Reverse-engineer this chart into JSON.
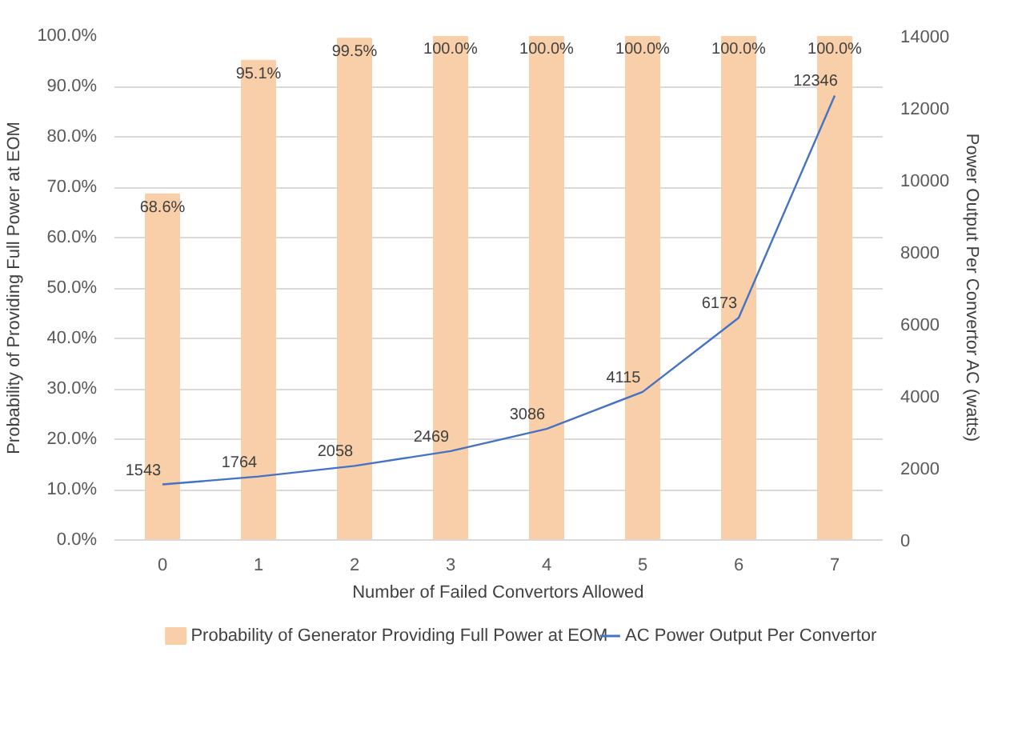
{
  "chart_data": {
    "type": "bar",
    "categories": [
      "0",
      "1",
      "2",
      "3",
      "4",
      "5",
      "6",
      "7"
    ],
    "xlabel": "Number of Failed Convertors Allowed",
    "ylabel": "Probability of Providing Full Power at EOM",
    "y2label": "Power Output Per Convertor AC (watts)",
    "series": [
      {
        "name": "Probability of Generator Providing Full Power at EOM",
        "color": "#f8cfa8",
        "values": [
          68.6,
          95.1,
          99.5,
          100,
          100,
          100,
          100,
          100
        ],
        "value_labels": [
          "68.6%",
          "95.1%",
          "99.5%",
          "100.0%",
          "100.0%",
          "100.0%",
          "100.0%",
          "100.0%"
        ]
      },
      {
        "name": "AC Power Output Per Convertor",
        "type": "line",
        "axis": "y2",
        "color": "#4472c4",
        "values": [
          1543,
          1764,
          2058,
          2469,
          3086,
          4115,
          6173,
          12346
        ],
        "value_labels": [
          "1543",
          "1764",
          "2058",
          "2469",
          "3086",
          "4115",
          "6173",
          "12346"
        ]
      }
    ],
    "ylim": [
      0,
      100
    ],
    "yticks": [
      {
        "value": 0,
        "label": "0.0%"
      },
      {
        "value": 10,
        "label": "10.0%"
      },
      {
        "value": 20,
        "label": "20.0%"
      },
      {
        "value": 30,
        "label": "30.0%"
      },
      {
        "value": 40,
        "label": "40.0%"
      },
      {
        "value": 50,
        "label": "50.0%"
      },
      {
        "value": 60,
        "label": "60.0%"
      },
      {
        "value": 70,
        "label": "70.0%"
      },
      {
        "value": 80,
        "label": "80.0%"
      },
      {
        "value": 90,
        "label": "90.0%"
      },
      {
        "value": 100,
        "label": "100.0%"
      }
    ],
    "y2lim": [
      0,
      14000
    ],
    "y2ticks": [
      0,
      2000,
      4000,
      6000,
      8000,
      10000,
      12000,
      14000
    ],
    "grid": "y",
    "legend": "bottom"
  }
}
